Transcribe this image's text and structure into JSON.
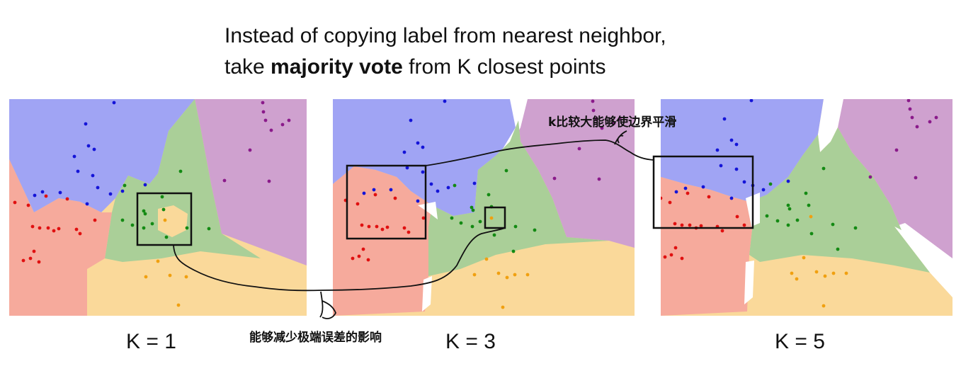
{
  "title": {
    "line1": "Instead of copying label from nearest neighbor,",
    "line2_prefix": "take ",
    "line2_bold": "majority vote",
    "line2_suffix": " from K closest points"
  },
  "panels": [
    {
      "id": "k1",
      "label": "K = 1"
    },
    {
      "id": "k3",
      "label": "K = 3"
    },
    {
      "id": "k5",
      "label": "K = 5"
    }
  ],
  "annotations": {
    "smooth_boundary": "k比较大能够使边界平滑",
    "reduce_outlier": "能够减少极端误差的影响"
  },
  "colors": {
    "blue_region": "#a0a4f4",
    "purple_region": "#cfa1cf",
    "red_region": "#f6aa9c",
    "green_region": "#aacf98",
    "orange_region": "#fad99a",
    "blue_point": "#1414d8",
    "purple_point": "#8a1a8a",
    "red_point": "#e01010",
    "green_point": "#138a13",
    "orange_point": "#f0a010"
  }
}
